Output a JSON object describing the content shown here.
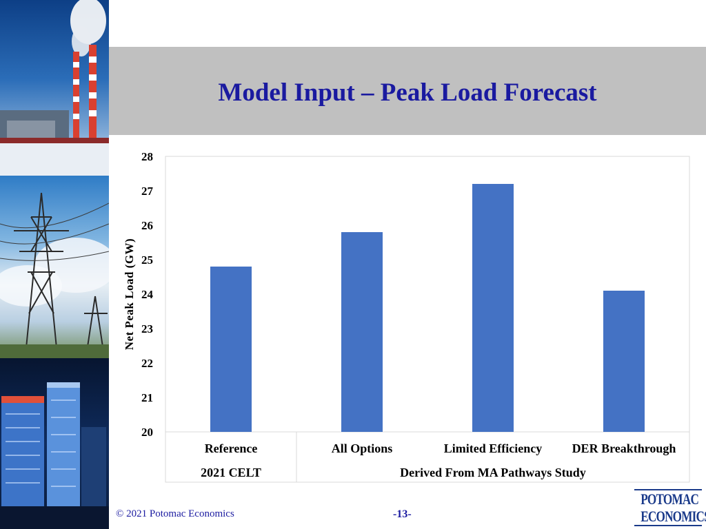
{
  "slide": {
    "title": "Model Input – Peak Load Forecast",
    "footer_copyright": "© 2021 Potomac Economics",
    "page_number": "-13-",
    "logo_line1": "POTOMAC",
    "logo_line2": "ECONOMICS"
  },
  "chart_data": {
    "type": "bar",
    "categories": [
      "Reference",
      "All Options",
      "Limited Efficiency",
      "DER Breakthrough"
    ],
    "groups": [
      {
        "label": "2021 CELT",
        "categories": [
          "Reference"
        ]
      },
      {
        "label": "Derived From MA Pathways Study",
        "categories": [
          "All Options",
          "Limited Efficiency",
          "DER Breakthrough"
        ]
      }
    ],
    "values": [
      24.8,
      25.8,
      27.2,
      24.1
    ],
    "ylabel": "Net Peak Load (GW)",
    "xlabel": "",
    "ylim": [
      20,
      28
    ],
    "yticks": [
      20,
      21,
      22,
      23,
      24,
      25,
      26,
      27,
      28
    ],
    "bar_color": "#4472c4",
    "grid": false,
    "legend": "none"
  }
}
